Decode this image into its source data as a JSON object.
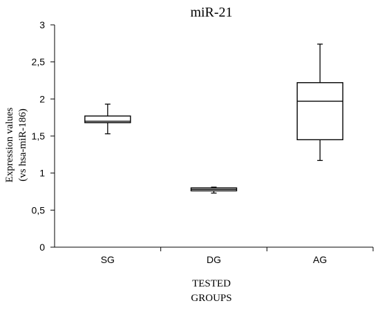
{
  "chart_data": {
    "type": "box",
    "title": "miR-21",
    "ylabel_lines": [
      "Expression values",
      "(vs hsa-miR-186)"
    ],
    "xlabel_lines": [
      "TESTED",
      "GROUPS"
    ],
    "ylim": [
      0,
      3
    ],
    "yticks": [
      0,
      0.5,
      1,
      1.5,
      2,
      2.5,
      3
    ],
    "ytick_labels": [
      "0",
      "0,5",
      "1",
      "1,5",
      "2",
      "2,5",
      "3"
    ],
    "grid": false,
    "legend": "none",
    "categories": [
      "SG",
      "DG",
      "AG"
    ],
    "boxes": [
      {
        "category": "SG",
        "min": 1.53,
        "q1": 1.68,
        "median": 1.7,
        "q3": 1.77,
        "max": 1.93
      },
      {
        "category": "DG",
        "min": 0.73,
        "q1": 0.76,
        "median": 0.78,
        "q3": 0.8,
        "max": 0.81
      },
      {
        "category": "AG",
        "min": 1.17,
        "q1": 1.45,
        "median": 1.97,
        "q3": 2.22,
        "max": 2.74
      }
    ]
  }
}
